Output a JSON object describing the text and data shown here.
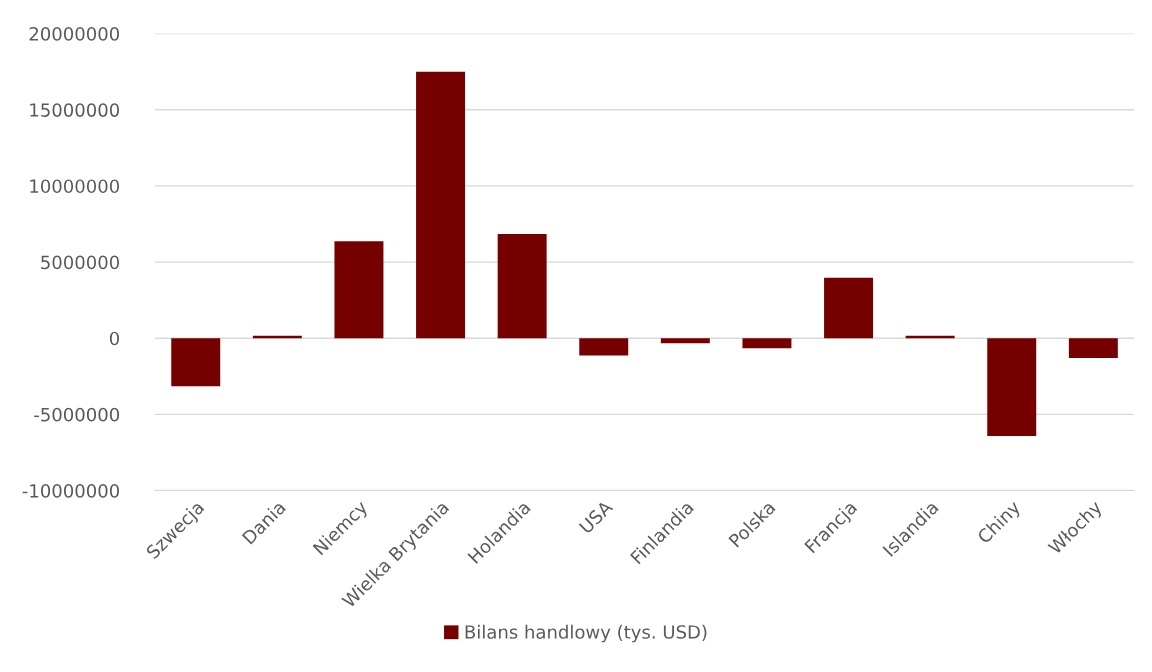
{
  "chart_data": {
    "type": "bar",
    "categories": [
      "Szwecja",
      "Dania",
      "Niemcy",
      "Wielka Brytania",
      "Holandia",
      "USA",
      "Finlandia",
      "Polska",
      "Francja",
      "Islandia",
      "Chiny",
      "Włochy"
    ],
    "series": [
      {
        "name": "Bilans handlowy (tys. USD)",
        "color": "#760000",
        "values": [
          -3150000,
          160000,
          6360000,
          17500000,
          6850000,
          -1140000,
          -330000,
          -650000,
          3970000,
          160000,
          -6410000,
          -1300000
        ]
      }
    ],
    "ylim": [
      -10000000,
      20000000
    ],
    "yticks": [
      -10000000,
      -5000000,
      0,
      5000000,
      10000000,
      15000000,
      20000000
    ],
    "grid": "y",
    "legend": "bottom"
  }
}
